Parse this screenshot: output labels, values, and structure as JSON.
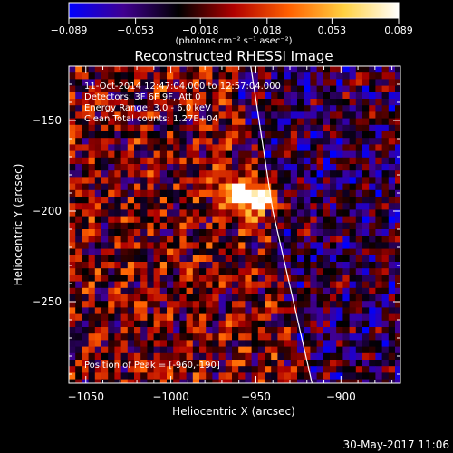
{
  "chart_data": {
    "type": "heatmap",
    "title": "Reconstructed RHESSI Image",
    "xlabel": "Heliocentric X (arcsec)",
    "ylabel": "Heliocentric Y (arcsec)",
    "xlim": [
      -1060,
      -865
    ],
    "ylim": [
      -295,
      -120
    ],
    "x_ticks": [
      -1050,
      -1000,
      -950,
      -900
    ],
    "x_tick_labels": [
      "−1050",
      "−1000",
      "−950",
      "−900"
    ],
    "y_ticks": [
      -150,
      -200,
      -250
    ],
    "y_tick_labels": [
      "−150",
      "−200",
      "−250"
    ],
    "colorbar": {
      "range": [
        -0.089,
        0.089
      ],
      "ticks": [
        -0.089,
        -0.053,
        -0.018,
        0.018,
        0.053,
        0.089
      ],
      "tick_labels": [
        "−0.089",
        "−0.053",
        "−0.018",
        "0.018",
        "0.053",
        "0.089"
      ],
      "unit_label": "(photons cm⁻² s⁻¹ asec⁻²)",
      "colormap": [
        "#0000ff",
        "#400090",
        "#000000",
        "#b00000",
        "#ff6000",
        "#ffd040",
        "#ffffff"
      ]
    },
    "annotations": [
      "11-Oct-2014 12:47:04.000 to 12:57:04.000",
      "Detectors: 3F 6F 9F, Att 0",
      "Energy Range: 3.0 - 6.0 keV",
      "Clean     Total counts: 1.27E+04"
    ],
    "peak_label": "Position of Peak = [-960,-190]",
    "peak": {
      "x": -960,
      "y": -190,
      "value": 0.089
    },
    "limb_line": [
      {
        "x": -953,
        "y": -120
      },
      {
        "x": -940,
        "y": -200
      },
      {
        "x": -917,
        "y": -295
      }
    ],
    "grid": false
  },
  "footer_date": "30-May-2017 11:06"
}
